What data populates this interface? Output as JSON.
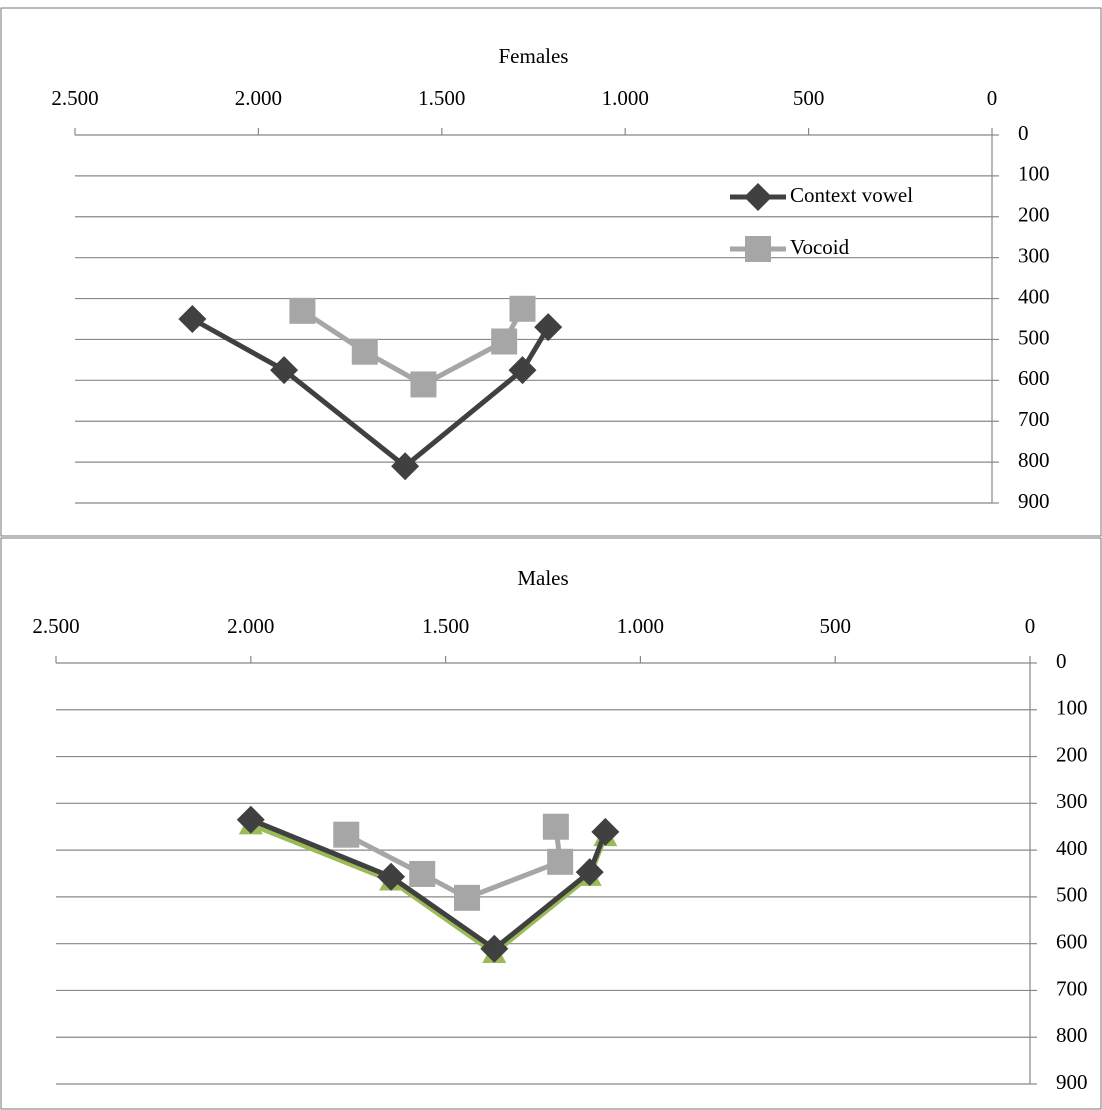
{
  "chart_data": [
    {
      "type": "line",
      "title": "Females",
      "legend": "top-right",
      "grid": true,
      "x_reversed": true,
      "y_reversed": true,
      "xlim": [
        0,
        2500
      ],
      "xticks": [
        {
          "value": 2500,
          "label": "2.500"
        },
        {
          "value": 2000,
          "label": "2.000"
        },
        {
          "value": 1500,
          "label": "1.500"
        },
        {
          "value": 1000,
          "label": "1.000"
        },
        500,
        0
      ],
      "ylim": [
        0,
        900
      ],
      "yticks": [
        0,
        100,
        200,
        300,
        400,
        500,
        600,
        700,
        800,
        900
      ],
      "series": [
        {
          "name": "Context vowel",
          "color": "#404040",
          "marker": "diamond",
          "x": [
            2180,
            1930,
            1600,
            1280,
            1210
          ],
          "values": [
            450,
            575,
            810,
            575,
            470
          ]
        },
        {
          "name": "Vocoid",
          "color": "#a6a6a6",
          "marker": "square",
          "x": [
            1880,
            1710,
            1550,
            1330,
            1280
          ],
          "values": [
            430,
            530,
            610,
            505,
            425
          ]
        }
      ]
    },
    {
      "type": "line",
      "title": "Males",
      "grid": true,
      "x_reversed": true,
      "y_reversed": true,
      "xlim": [
        0,
        2500
      ],
      "xticks": [
        {
          "value": 2500,
          "label": "2.500"
        },
        {
          "value": 2000,
          "label": "2.000"
        },
        {
          "value": 1500,
          "label": "1.500"
        },
        {
          "value": 1000,
          "label": "1.000"
        },
        500,
        0
      ],
      "ylim": [
        0,
        900
      ],
      "yticks": [
        0,
        100,
        200,
        300,
        400,
        500,
        600,
        700,
        800,
        900
      ],
      "series": [
        {
          "color": "#9bbb59",
          "marker": "triangle",
          "x": [
            2000,
            1640,
            1375,
            1130,
            1090
          ],
          "values": [
            345,
            465,
            620,
            455,
            370
          ]
        },
        {
          "color": "#404040",
          "marker": "diamond",
          "x": [
            2000,
            1640,
            1375,
            1130,
            1090
          ],
          "values": [
            335,
            457,
            611,
            447,
            361
          ]
        },
        {
          "color": "#a6a6a6",
          "marker": "square",
          "x": [
            1755,
            1560,
            1445,
            1206,
            1217
          ],
          "values": [
            367,
            451,
            502,
            425,
            350
          ]
        }
      ]
    }
  ]
}
